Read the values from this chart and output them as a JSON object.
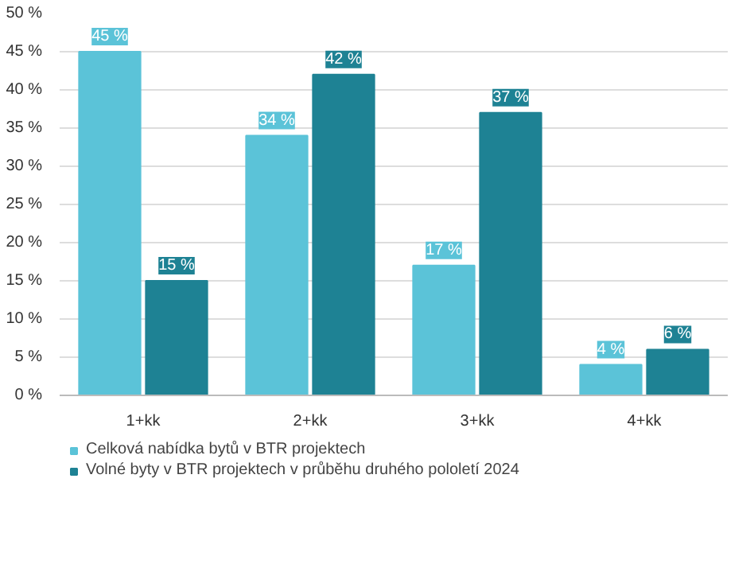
{
  "chart_data": {
    "type": "bar",
    "categories": [
      "1+kk",
      "2+kk",
      "3+kk",
      "4+kk"
    ],
    "series": [
      {
        "name": "Celková nabídka bytů v BTR projektech",
        "color": "#5bc3d8",
        "values": [
          45,
          34,
          17,
          4
        ],
        "value_labels": [
          "45 %",
          "34 %",
          "17 %",
          "4 %"
        ]
      },
      {
        "name": "Volné byty v BTR projektech v průběhu druhého pololetí 2024",
        "color": "#1e8294",
        "values": [
          15,
          42,
          37,
          6
        ],
        "value_labels": [
          "15 %",
          "42 %",
          "37 %",
          "6 %"
        ]
      }
    ],
    "ylim": [
      0,
      50
    ],
    "yticks": [
      {
        "value": 0,
        "label": "0 %"
      },
      {
        "value": 5,
        "label": "5 %"
      },
      {
        "value": 10,
        "label": "10 %"
      },
      {
        "value": 15,
        "label": "15 %"
      },
      {
        "value": 20,
        "label": "20 %"
      },
      {
        "value": 25,
        "label": "25 %"
      },
      {
        "value": 30,
        "label": "30 %"
      },
      {
        "value": 35,
        "label": "35 %"
      },
      {
        "value": 40,
        "label": "40 %"
      },
      {
        "value": 45,
        "label": "45 %"
      },
      {
        "value": 50,
        "label": "50 %"
      }
    ],
    "grid": "y",
    "legend": "bottom"
  }
}
